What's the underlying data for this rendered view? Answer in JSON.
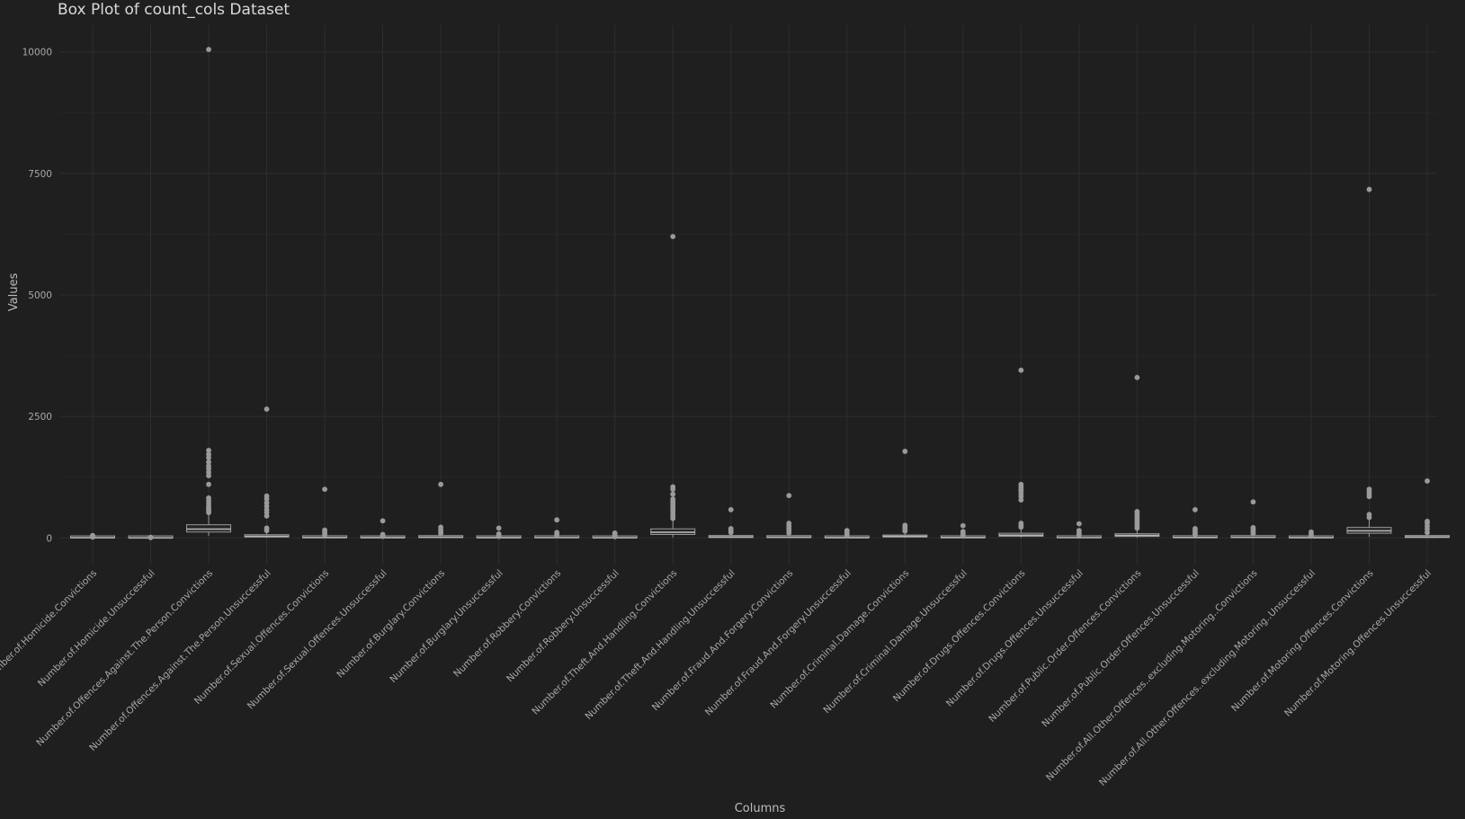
{
  "chart_data": {
    "type": "box",
    "title": "Box Plot of count_cols Dataset",
    "xlabel": "Columns",
    "ylabel": "Values",
    "ylim": [
      -550,
      10550
    ],
    "yticks": [
      0,
      2500,
      5000,
      7500,
      10000
    ],
    "grid": true,
    "colors": {
      "background": "#1f1f1f",
      "grid": "#2e2e2e",
      "box": "#9a9a9a",
      "text": "#a9a9a9"
    },
    "series": [
      {
        "name": "Number.of.Homicide.Convictions",
        "q1": 0,
        "median": 1,
        "q3": 3,
        "whislo": 0,
        "whishi": 8,
        "outliers": [
          15,
          22,
          35,
          48
        ]
      },
      {
        "name": "Number.of.Homicide.Unsuccessful",
        "q1": 0,
        "median": 0,
        "q3": 1,
        "whislo": 0,
        "whishi": 3,
        "outliers": [
          5,
          8,
          12
        ]
      },
      {
        "name": "Number.of.Offences.Against.The.Person.Convictions",
        "q1": 120,
        "median": 180,
        "q3": 270,
        "whislo": 40,
        "whishi": 480,
        "outliers": [
          520,
          560,
          600,
          640,
          700,
          760,
          820,
          1100,
          1280,
          1350,
          1420,
          1480,
          1560,
          1650,
          1720,
          1800,
          10050
        ]
      },
      {
        "name": "Number.of.Offences.Against.The.Person.Unsuccessful",
        "q1": 18,
        "median": 32,
        "q3": 65,
        "whislo": 0,
        "whishi": 130,
        "outliers": [
          150,
          200,
          450,
          520,
          580,
          650,
          720,
          800,
          860,
          2650
        ]
      },
      {
        "name": "Number.of.Sexual.Offences.Convictions",
        "q1": 3,
        "median": 7,
        "q3": 15,
        "whislo": 0,
        "whishi": 35,
        "outliers": [
          60,
          90,
          130,
          160,
          1000
        ]
      },
      {
        "name": "Number.of.Sexual.Offences.Unsuccessful",
        "q1": 1,
        "median": 3,
        "q3": 8,
        "whislo": 0,
        "whishi": 18,
        "outliers": [
          30,
          50,
          70,
          350
        ]
      },
      {
        "name": "Number.of.Burglary.Convictions",
        "q1": 6,
        "median": 14,
        "q3": 28,
        "whislo": 0,
        "whishi": 62,
        "outliers": [
          90,
          130,
          170,
          220,
          1100
        ]
      },
      {
        "name": "Number.of.Burglary.Unsuccessful",
        "q1": 1,
        "median": 3,
        "q3": 7,
        "whislo": 0,
        "whishi": 16,
        "outliers": [
          30,
          50,
          80,
          200
        ]
      },
      {
        "name": "Number.of.Robbery.Convictions",
        "q1": 2,
        "median": 5,
        "q3": 12,
        "whislo": 0,
        "whishi": 28,
        "outliers": [
          50,
          80,
          110,
          370
        ]
      },
      {
        "name": "Number.of.Robbery.Unsuccessful",
        "q1": 0,
        "median": 2,
        "q3": 5,
        "whislo": 0,
        "whishi": 12,
        "outliers": [
          25,
          45,
          70,
          100
        ]
      },
      {
        "name": "Number.of.Theft.And.Handling.Convictions",
        "q1": 70,
        "median": 115,
        "q3": 185,
        "whislo": 10,
        "whishi": 350,
        "outliers": [
          400,
          450,
          500,
          550,
          600,
          650,
          700,
          750,
          800,
          900,
          1000,
          1050,
          6200
        ]
      },
      {
        "name": "Number.of.Theft.And.Handling.Unsuccessful",
        "q1": 8,
        "median": 17,
        "q3": 35,
        "whislo": 0,
        "whishi": 75,
        "outliers": [
          110,
          150,
          190,
          580
        ]
      },
      {
        "name": "Number.of.Fraud.And.Forgery.Convictions",
        "q1": 6,
        "median": 13,
        "q3": 30,
        "whislo": 0,
        "whishi": 65,
        "outliers": [
          100,
          150,
          200,
          250,
          300,
          870
        ]
      },
      {
        "name": "Number.of.Fraud.And.Forgery.Unsuccessful",
        "q1": 1,
        "median": 3,
        "q3": 8,
        "whislo": 0,
        "whishi": 18,
        "outliers": [
          40,
          80,
          120,
          150
        ]
      },
      {
        "name": "Number.of.Criminal.Damage.Convictions",
        "q1": 18,
        "median": 32,
        "q3": 55,
        "whislo": 3,
        "whishi": 105,
        "outliers": [
          140,
          180,
          220,
          260,
          1780
        ]
      },
      {
        "name": "Number.of.Criminal.Damage.Unsuccessful",
        "q1": 2,
        "median": 6,
        "q3": 12,
        "whislo": 0,
        "whishi": 28,
        "outliers": [
          50,
          90,
          130,
          250
        ]
      },
      {
        "name": "Number.of.Drugs.Offences.Convictions",
        "q1": 32,
        "median": 55,
        "q3": 95,
        "whislo": 5,
        "whishi": 180,
        "outliers": [
          220,
          260,
          300,
          780,
          850,
          900,
          960,
          1000,
          1050,
          1100,
          3450
        ]
      },
      {
        "name": "Number.of.Drugs.Offences.Unsuccessful",
        "q1": 2,
        "median": 5,
        "q3": 10,
        "whislo": 0,
        "whishi": 25,
        "outliers": [
          60,
          100,
          150,
          290
        ]
      },
      {
        "name": "Number.of.Public.Order.Offences.Convictions",
        "q1": 30,
        "median": 50,
        "q3": 85,
        "whislo": 5,
        "whishi": 160,
        "outliers": [
          200,
          250,
          300,
          350,
          400,
          450,
          500,
          540,
          3300
        ]
      },
      {
        "name": "Number.of.Public.Order.Offences.Unsuccessful",
        "q1": 4,
        "median": 9,
        "q3": 18,
        "whislo": 0,
        "whishi": 40,
        "outliers": [
          70,
          110,
          150,
          190,
          580
        ]
      },
      {
        "name": "Number.of.All.Other.Offences..excluding.Motoring..Convictions",
        "q1": 6,
        "median": 12,
        "q3": 25,
        "whislo": 0,
        "whishi": 55,
        "outliers": [
          90,
          130,
          170,
          210,
          740
        ]
      },
      {
        "name": "Number.of.All.Other.Offences..excluding.Motoring..Unsuccessful",
        "q1": 1,
        "median": 3,
        "q3": 7,
        "whislo": 0,
        "whishi": 16,
        "outliers": [
          35,
          70,
          120
        ]
      },
      {
        "name": "Number.of.Motoring.Offences.Convictions",
        "q1": 95,
        "median": 145,
        "q3": 215,
        "whislo": 20,
        "whishi": 380,
        "outliers": [
          420,
          480,
          850,
          900,
          950,
          1000,
          7170
        ]
      },
      {
        "name": "Number.of.Motoring.Offences.Unsuccessful",
        "q1": 8,
        "median": 17,
        "q3": 35,
        "whislo": 0,
        "whishi": 75,
        "outliers": [
          110,
          180,
          240,
          300,
          340,
          1170
        ]
      }
    ]
  }
}
